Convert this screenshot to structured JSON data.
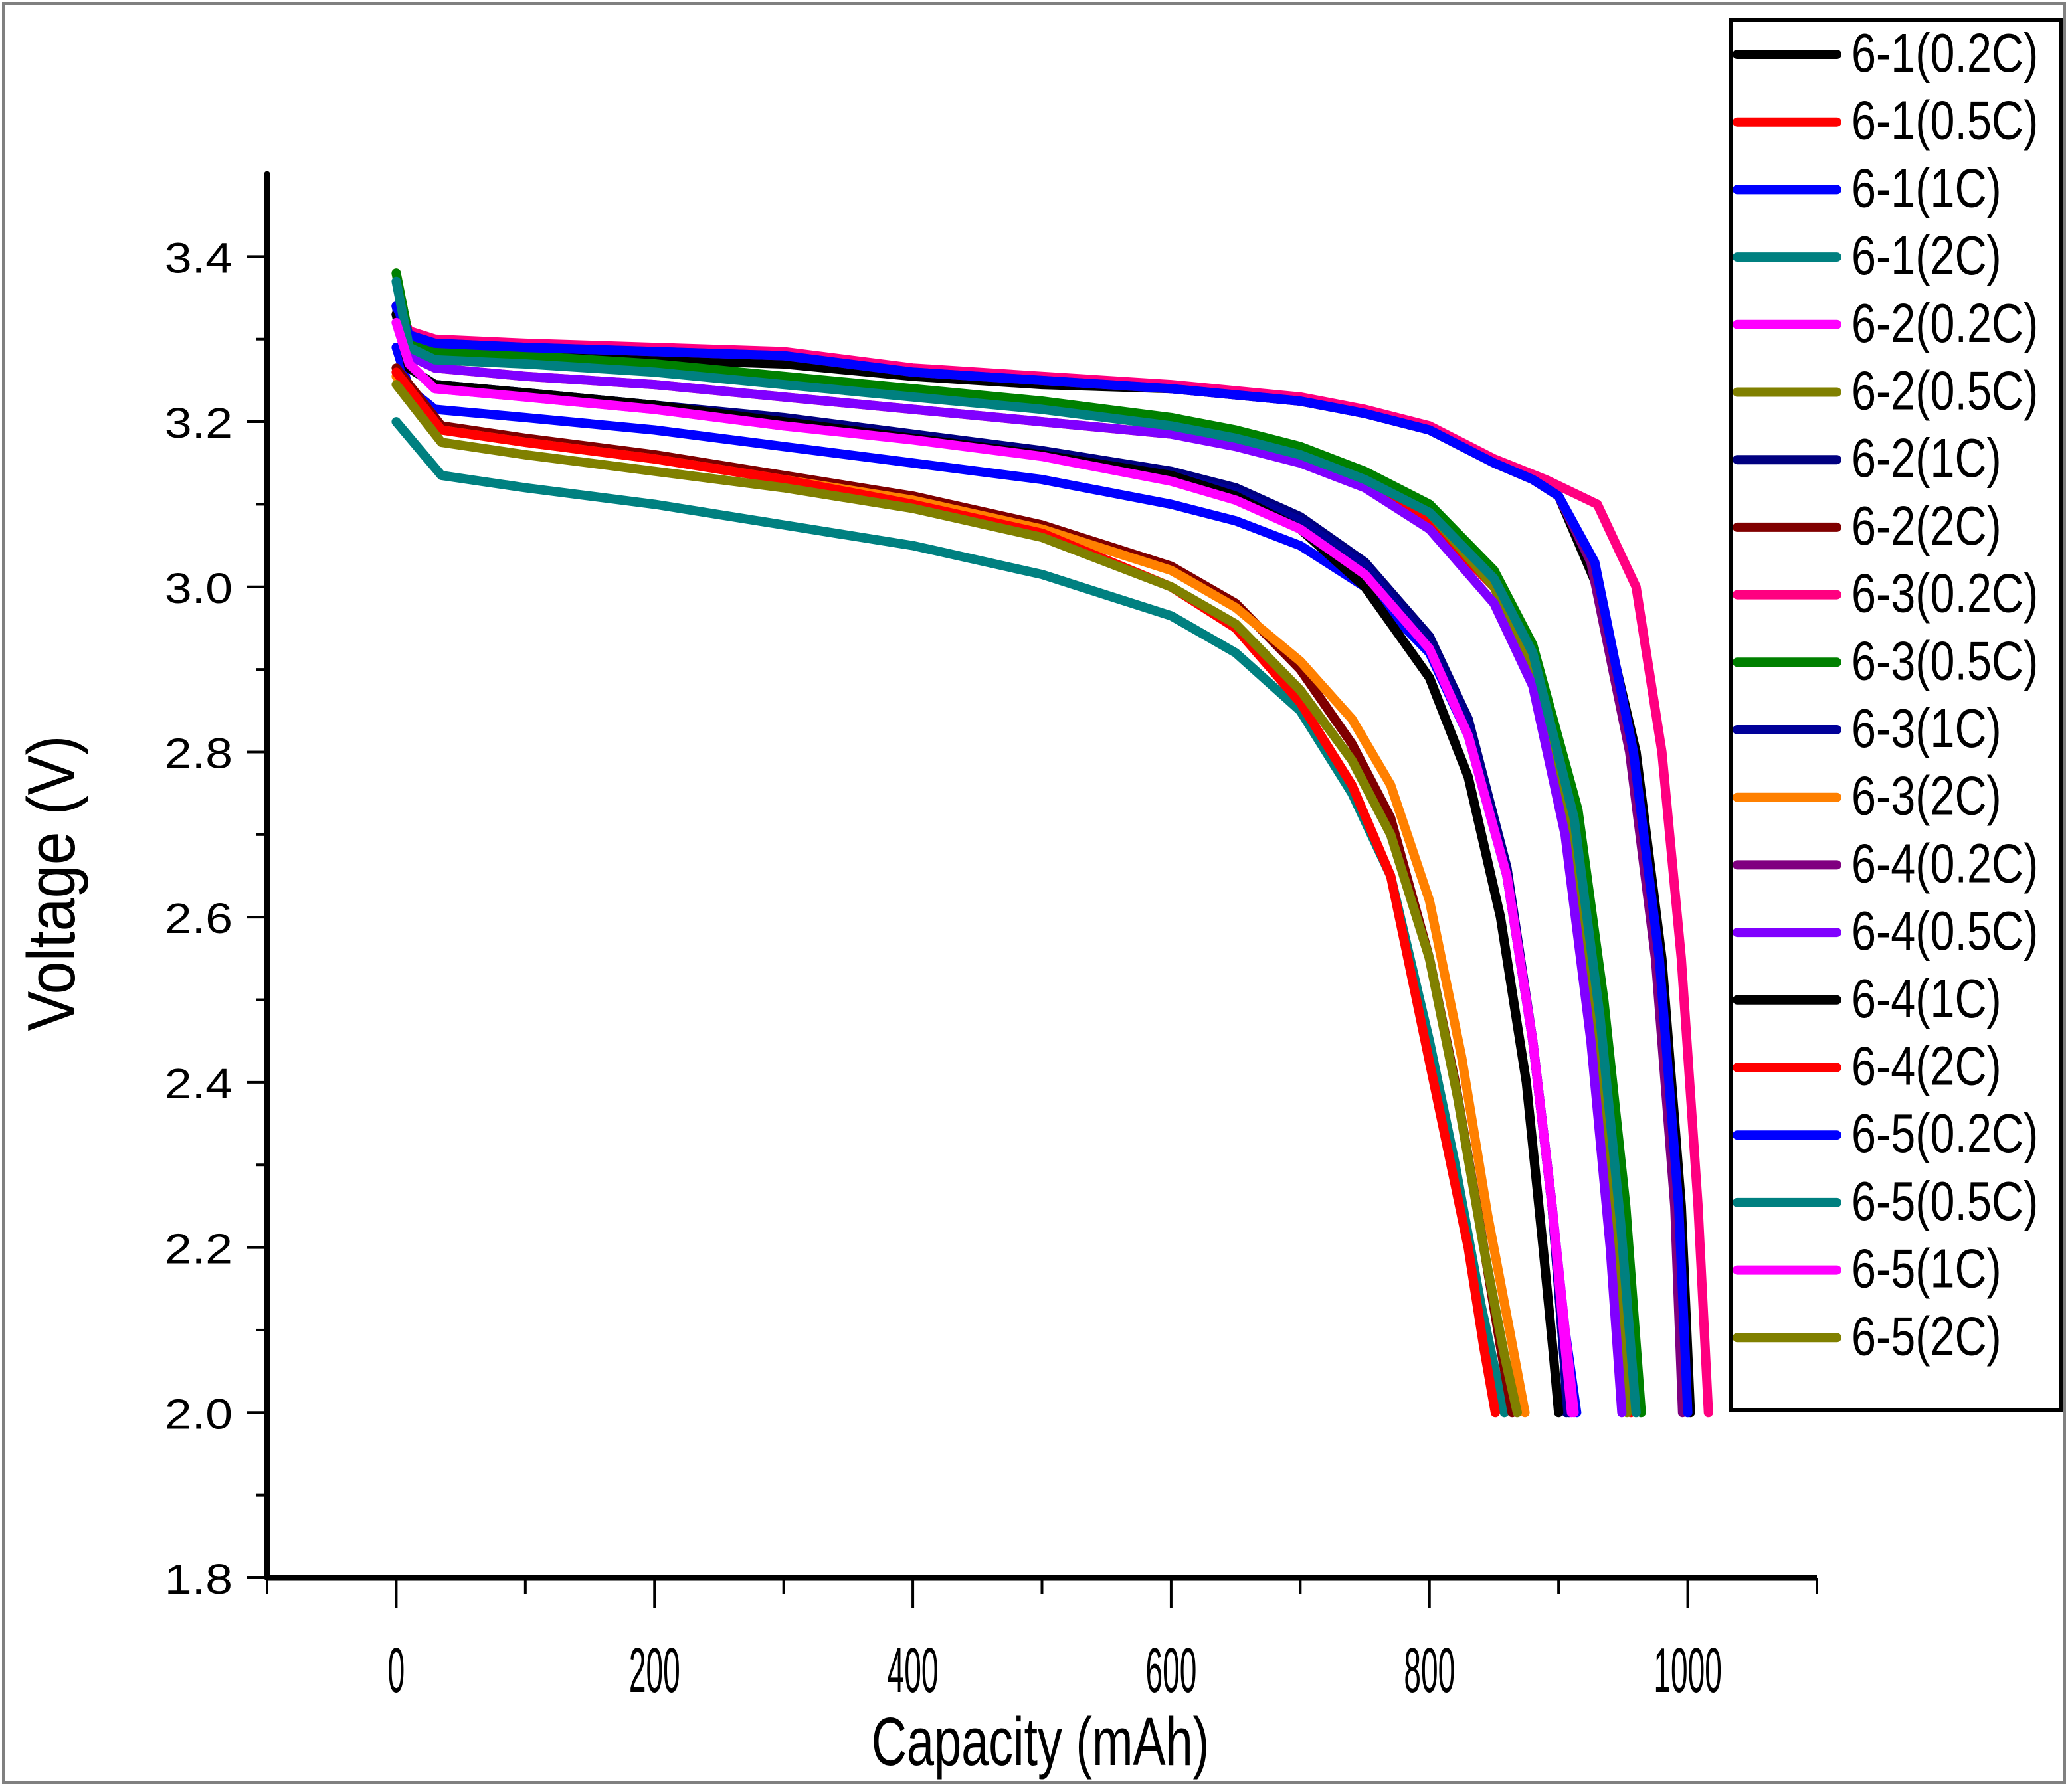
{
  "chart_data": {
    "type": "line",
    "title": "",
    "xlabel": "Capacity (mAh)",
    "ylabel": "Voltage (V)",
    "xlim": [
      -100,
      1100
    ],
    "ylim": [
      1.8,
      3.5
    ],
    "x_ticks": [
      0,
      200,
      400,
      600,
      800,
      1000
    ],
    "x_tick_labels": [
      "0",
      "200",
      "400",
      "600",
      "800",
      "1000"
    ],
    "x_minor_ticks": [
      -100,
      100,
      300,
      500,
      700,
      900,
      1100
    ],
    "y_ticks": [
      1.8,
      2.0,
      2.2,
      2.4,
      2.6,
      2.8,
      3.0,
      3.2,
      3.4
    ],
    "y_tick_labels": [
      "1.8",
      "2.0",
      "2.2",
      "2.4",
      "2.6",
      "2.8",
      "3.0",
      "3.2",
      "3.4"
    ],
    "y_minor_ticks": [
      1.9,
      2.1,
      2.3,
      2.5,
      2.7,
      2.9,
      3.1,
      3.3
    ],
    "grid": false,
    "legend_position": "top-right outside",
    "series": [
      {
        "name": "6-1(0.2C)",
        "color": "#000000",
        "x": [
          0,
          10,
          30,
          100,
          200,
          300,
          400,
          500,
          600,
          700,
          750,
          800,
          850,
          880,
          900,
          930,
          960,
          980,
          995,
          1002
        ],
        "y": [
          3.34,
          3.3,
          3.285,
          3.28,
          3.275,
          3.27,
          3.255,
          3.245,
          3.24,
          3.225,
          3.21,
          3.19,
          3.15,
          3.13,
          3.11,
          3.0,
          2.8,
          2.55,
          2.25,
          2.0
        ]
      },
      {
        "name": "6-1(0.5C)",
        "color": "#ff0000",
        "x": [
          0,
          10,
          30,
          100,
          200,
          300,
          400,
          500,
          600,
          650,
          700,
          750,
          800,
          850,
          880,
          910,
          930,
          945,
          956
        ],
        "y": [
          3.33,
          3.28,
          3.265,
          3.255,
          3.245,
          3.23,
          3.215,
          3.2,
          3.185,
          3.175,
          3.155,
          3.125,
          3.08,
          3.0,
          2.9,
          2.7,
          2.45,
          2.2,
          2.0
        ]
      },
      {
        "name": "6-1(1C)",
        "color": "#0000ff",
        "x": [
          0,
          10,
          30,
          100,
          200,
          300,
          400,
          500,
          600,
          650,
          700,
          750,
          800,
          830,
          860,
          880,
          895,
          905,
          914
        ],
        "y": [
          3.29,
          3.24,
          3.215,
          3.205,
          3.19,
          3.17,
          3.15,
          3.13,
          3.1,
          3.08,
          3.05,
          3.0,
          2.92,
          2.82,
          2.65,
          2.45,
          2.25,
          2.1,
          2.0
        ]
      },
      {
        "name": "6-1(2C)",
        "color": "#008080",
        "x": [
          0,
          35,
          100,
          200,
          300,
          400,
          500,
          600,
          650,
          700,
          740,
          770,
          800,
          820,
          840,
          858
        ],
        "y": [
          3.2,
          3.135,
          3.12,
          3.1,
          3.075,
          3.05,
          3.015,
          2.965,
          2.92,
          2.85,
          2.75,
          2.65,
          2.45,
          2.3,
          2.13,
          2.0
        ]
      },
      {
        "name": "6-2(0.2C)",
        "color": "#ff00ff",
        "x": [
          0,
          10,
          30,
          100,
          200,
          300,
          400,
          500,
          600,
          650,
          700,
          750,
          800,
          830,
          860,
          880,
          895,
          905,
          912
        ],
        "y": [
          3.32,
          3.27,
          3.24,
          3.23,
          3.215,
          3.195,
          3.18,
          3.16,
          3.13,
          3.11,
          3.075,
          3.02,
          2.93,
          2.83,
          2.66,
          2.45,
          2.25,
          2.1,
          2.0
        ]
      },
      {
        "name": "6-2(0.5C)",
        "color": "#808000",
        "x": [
          0,
          10,
          30,
          100,
          200,
          300,
          400,
          500,
          600,
          650,
          700,
          750,
          800,
          850,
          880,
          910,
          930,
          945,
          953
        ],
        "y": [
          3.38,
          3.3,
          3.28,
          3.275,
          3.265,
          3.25,
          3.235,
          3.22,
          3.2,
          3.185,
          3.165,
          3.135,
          3.09,
          3.0,
          2.9,
          2.7,
          2.45,
          2.2,
          2.0
        ]
      },
      {
        "name": "6-2(1C)",
        "color": "#000080",
        "x": [
          0,
          10,
          30,
          100,
          200,
          300,
          400,
          500,
          600,
          650,
          700,
          750,
          800,
          830,
          860,
          880,
          895,
          905,
          906
        ],
        "y": [
          3.34,
          3.265,
          3.245,
          3.235,
          3.22,
          3.205,
          3.185,
          3.165,
          3.14,
          3.12,
          3.085,
          3.03,
          2.94,
          2.84,
          2.66,
          2.45,
          2.25,
          2.05,
          2.0
        ]
      },
      {
        "name": "6-2(2C)",
        "color": "#800000",
        "x": [
          0,
          35,
          100,
          200,
          300,
          400,
          500,
          600,
          650,
          700,
          740,
          770,
          800,
          820,
          840,
          855,
          864
        ],
        "y": [
          3.265,
          3.195,
          3.18,
          3.16,
          3.135,
          3.11,
          3.075,
          3.025,
          2.98,
          2.9,
          2.81,
          2.72,
          2.55,
          2.4,
          2.22,
          2.08,
          2.0
        ]
      },
      {
        "name": "6-3(0.2C)",
        "color": "#ff0080",
        "x": [
          0,
          10,
          30,
          100,
          200,
          300,
          400,
          500,
          600,
          700,
          750,
          800,
          850,
          890,
          930,
          960,
          980,
          995,
          1008,
          1016
        ],
        "y": [
          3.34,
          3.31,
          3.3,
          3.295,
          3.29,
          3.285,
          3.265,
          3.255,
          3.245,
          3.23,
          3.215,
          3.195,
          3.155,
          3.13,
          3.1,
          3.0,
          2.8,
          2.55,
          2.25,
          2.0
        ]
      },
      {
        "name": "6-3(0.5C)",
        "color": "#008000",
        "x": [
          0,
          10,
          30,
          100,
          200,
          300,
          400,
          500,
          600,
          650,
          700,
          750,
          800,
          850,
          880,
          915,
          935,
          952,
          964
        ],
        "y": [
          3.38,
          3.3,
          3.285,
          3.28,
          3.27,
          3.255,
          3.24,
          3.225,
          3.205,
          3.19,
          3.17,
          3.14,
          3.1,
          3.02,
          2.93,
          2.73,
          2.5,
          2.25,
          2.0
        ]
      },
      {
        "name": "6-3(1C)",
        "color": "#000099",
        "x": [
          0,
          10,
          30,
          100,
          200,
          300,
          400,
          500,
          600,
          650,
          700,
          750,
          800,
          830,
          860,
          880,
          895,
          905,
          908
        ],
        "y": [
          3.33,
          3.265,
          3.245,
          3.235,
          3.22,
          3.2,
          3.18,
          3.16,
          3.135,
          3.115,
          3.08,
          3.025,
          2.93,
          2.83,
          2.65,
          2.45,
          2.25,
          2.05,
          2.0
        ]
      },
      {
        "name": "6-3(2C)",
        "color": "#ff8000",
        "x": [
          0,
          35,
          100,
          200,
          300,
          400,
          500,
          600,
          650,
          700,
          740,
          770,
          800,
          825,
          845,
          862,
          874
        ],
        "y": [
          3.255,
          3.19,
          3.175,
          3.155,
          3.13,
          3.105,
          3.07,
          3.02,
          2.975,
          2.91,
          2.84,
          2.76,
          2.62,
          2.43,
          2.24,
          2.1,
          2.0
        ]
      },
      {
        "name": "6-4(0.2C)",
        "color": "#800080",
        "x": [
          0,
          10,
          30,
          100,
          200,
          300,
          400,
          500,
          600,
          700,
          750,
          800,
          850,
          880,
          900,
          925,
          955,
          975,
          990,
          996
        ],
        "y": [
          3.34,
          3.305,
          3.295,
          3.29,
          3.285,
          3.28,
          3.26,
          3.25,
          3.24,
          3.225,
          3.21,
          3.19,
          3.15,
          3.13,
          3.11,
          3.03,
          2.8,
          2.55,
          2.25,
          2.0
        ]
      },
      {
        "name": "6-4(0.5C)",
        "color": "#8000ff",
        "x": [
          0,
          10,
          30,
          100,
          200,
          300,
          400,
          500,
          600,
          650,
          700,
          750,
          800,
          850,
          880,
          905,
          925,
          940,
          949
        ],
        "y": [
          3.33,
          3.28,
          3.265,
          3.255,
          3.245,
          3.23,
          3.215,
          3.2,
          3.185,
          3.17,
          3.15,
          3.12,
          3.07,
          2.98,
          2.88,
          2.7,
          2.45,
          2.2,
          2.0
        ]
      },
      {
        "name": "6-4(1C)",
        "color": "#000000",
        "x": [
          0,
          10,
          30,
          100,
          200,
          300,
          400,
          500,
          600,
          650,
          700,
          750,
          800,
          830,
          855,
          875,
          888,
          896,
          900
        ],
        "y": [
          3.33,
          3.265,
          3.245,
          3.235,
          3.22,
          3.2,
          3.18,
          3.16,
          3.135,
          3.11,
          3.07,
          3.0,
          2.89,
          2.77,
          2.6,
          2.4,
          2.2,
          2.07,
          2.0
        ]
      },
      {
        "name": "6-4(2C)",
        "color": "#ff0000",
        "x": [
          0,
          35,
          100,
          200,
          300,
          400,
          500,
          600,
          650,
          700,
          740,
          770,
          790,
          810,
          830,
          842,
          851
        ],
        "y": [
          3.26,
          3.19,
          3.175,
          3.155,
          3.13,
          3.1,
          3.065,
          3.0,
          2.95,
          2.86,
          2.76,
          2.65,
          2.5,
          2.35,
          2.2,
          2.08,
          2.0
        ]
      },
      {
        "name": "6-5(0.2C)",
        "color": "#0000ff",
        "x": [
          0,
          10,
          30,
          100,
          200,
          300,
          400,
          500,
          600,
          700,
          750,
          800,
          850,
          880,
          900,
          928,
          958,
          978,
          993,
          1000
        ],
        "y": [
          3.34,
          3.305,
          3.295,
          3.29,
          3.285,
          3.28,
          3.26,
          3.25,
          3.24,
          3.225,
          3.21,
          3.19,
          3.15,
          3.13,
          3.11,
          3.03,
          2.8,
          2.55,
          2.25,
          2.0
        ]
      },
      {
        "name": "6-5(0.5C)",
        "color": "#008080",
        "x": [
          0,
          10,
          30,
          100,
          200,
          300,
          400,
          500,
          600,
          650,
          700,
          750,
          800,
          850,
          880,
          912,
          932,
          948,
          960
        ],
        "y": [
          3.37,
          3.29,
          3.275,
          3.27,
          3.26,
          3.245,
          3.23,
          3.215,
          3.195,
          3.18,
          3.16,
          3.13,
          3.09,
          3.01,
          2.92,
          2.72,
          2.48,
          2.23,
          2.0
        ]
      },
      {
        "name": "6-5(1C)",
        "color": "#ff00ff",
        "x": [
          0,
          10,
          30,
          100,
          200,
          300,
          400,
          500,
          600,
          650,
          700,
          750,
          800,
          830,
          860,
          880,
          895,
          905,
          910
        ],
        "y": [
          3.32,
          3.27,
          3.24,
          3.23,
          3.215,
          3.195,
          3.178,
          3.158,
          3.128,
          3.105,
          3.07,
          3.015,
          2.925,
          2.82,
          2.65,
          2.45,
          2.25,
          2.08,
          2.0
        ]
      },
      {
        "name": "6-5(2C)",
        "color": "#808000",
        "x": [
          0,
          35,
          100,
          200,
          300,
          400,
          500,
          600,
          650,
          700,
          740,
          770,
          800,
          822,
          842,
          858,
          868
        ],
        "y": [
          3.245,
          3.175,
          3.16,
          3.14,
          3.12,
          3.095,
          3.06,
          3.0,
          2.955,
          2.875,
          2.79,
          2.7,
          2.55,
          2.38,
          2.2,
          2.07,
          2.0
        ]
      }
    ]
  }
}
